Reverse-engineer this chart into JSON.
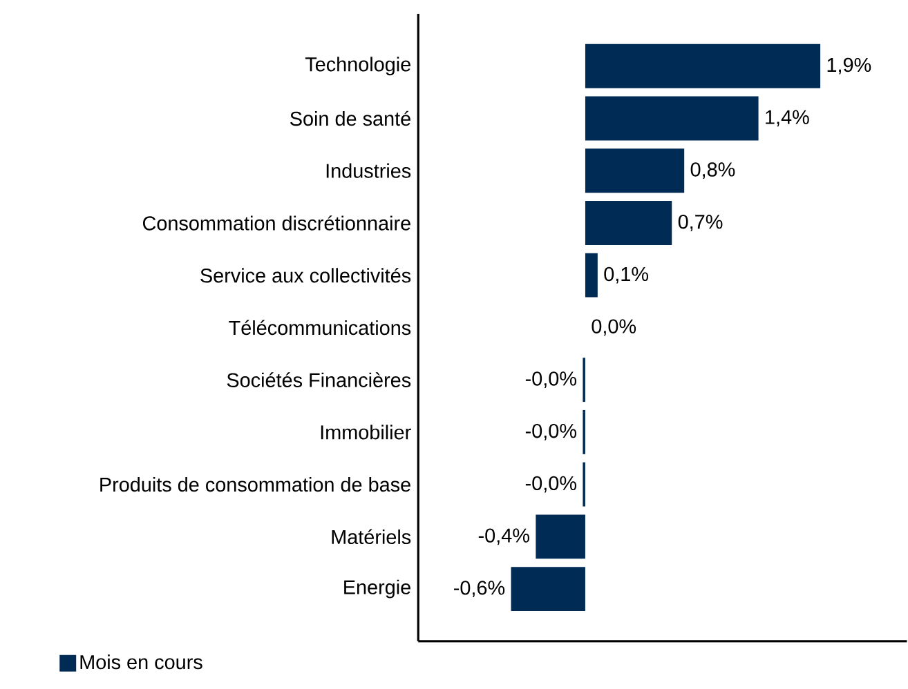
{
  "chart_data": {
    "type": "bar",
    "orientation": "horizontal",
    "categories": [
      "Technologie",
      "Soin de santé",
      "Industries",
      "Consommation discrétionnaire",
      "Service aux collectivités",
      "Télécommunications",
      "Sociétés Financières",
      "Immobilier",
      "Produits de consommation de base",
      "Matériels",
      "Energie"
    ],
    "series": [
      {
        "name": "Mois en cours",
        "color": "#002b55",
        "values": [
          1.9,
          1.4,
          0.8,
          0.7,
          0.1,
          0.0,
          -0.02,
          -0.02,
          -0.02,
          -0.4,
          -0.6
        ],
        "value_labels": [
          "1,9%",
          "1,4%",
          "0,8%",
          "0,7%",
          "0,1%",
          "0,0%",
          "-0,0%",
          "-0,0%",
          "-0,0%",
          "-0,4%",
          "-0,6%"
        ]
      }
    ],
    "xlim": [
      -1.35,
      2.6
    ],
    "legend": "bottom left"
  }
}
